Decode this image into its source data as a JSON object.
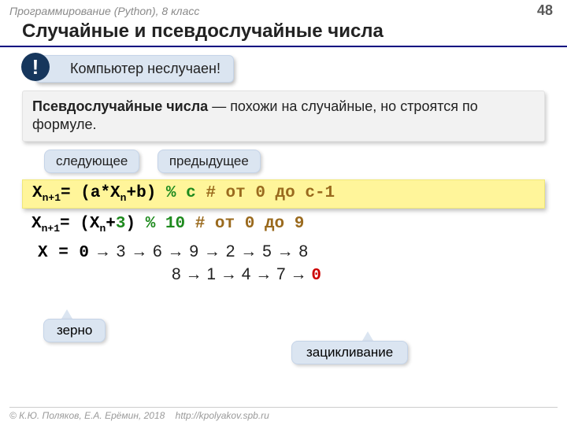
{
  "header": {
    "course": "Программирование (Python), 8 класс",
    "page": "48"
  },
  "title": "Случайные и псевдослучайные числа",
  "callout": {
    "bang": "!",
    "text": "Компьютер неслучаен!"
  },
  "definition": {
    "term": "Псевдослучайные числа",
    "rest": " — похожи на случайные, но строятся по формуле."
  },
  "labels": {
    "next": "следующее",
    "prev": "предыдущее"
  },
  "formula1": {
    "x": "X",
    "sub1": "n+1",
    "eq": "= (a*X",
    "sub2": "n",
    "plusb": "+b)",
    "mod": " % c",
    "comment": " # от 0 до c-1"
  },
  "formula2": {
    "x": "X",
    "sub1": "n+1",
    "eq": "= (X",
    "sub2": "n",
    "plus3a": "+",
    "plus3b": "3",
    "close": ")",
    "mod": " % 10",
    "comment": "  #  от 0 до 9"
  },
  "sequence": {
    "line1_prefix": "X = 0",
    "line1_rest": " → 3 → 6 → 9 → 2 → 5 → 8",
    "line2_body": "8 → 1 → 4 → 7 → ",
    "line2_zero": "0"
  },
  "annotations": {
    "seed": "зерно",
    "loop": "зацикливание"
  },
  "footer": {
    "copyright": "© К.Ю. Поляков, Е.А. Ерёмин, 2018",
    "url": "http://kpolyakov.spb.ru"
  }
}
